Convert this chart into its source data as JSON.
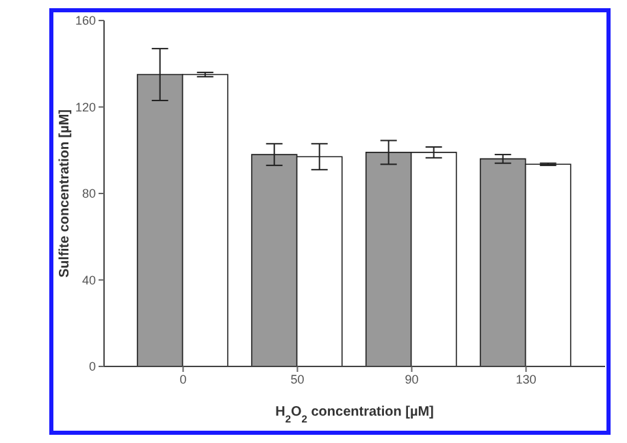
{
  "chart_data": {
    "type": "bar",
    "xlabel": "H$_{2}$O$_{2}$ concentration [µM]",
    "ylabel": "Sulfite concentration [µM]",
    "categories": [
      "0",
      "50",
      "90",
      "130"
    ],
    "series": [
      {
        "color": "#999999",
        "values": [
          135,
          98,
          99,
          96
        ],
        "errors": [
          12,
          5,
          5.5,
          2
        ]
      },
      {
        "color": "#ffffff",
        "values": [
          135,
          97,
          99,
          93.5
        ],
        "errors": [
          1,
          6,
          2.5,
          0.5
        ]
      }
    ],
    "ylim": [
      0,
      160
    ],
    "yticks": [
      0,
      40,
      80,
      120,
      160
    ],
    "grid": false,
    "legend": false
  }
}
